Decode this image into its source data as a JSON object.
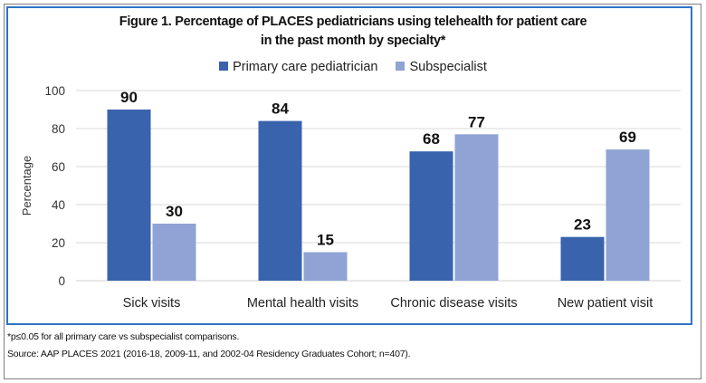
{
  "chart_data": {
    "type": "bar",
    "title": "Figure 1. Percentage of PLACES pediatricians using telehealth for patient care",
    "title_line2": "in the past month by specialty*",
    "xlabel": "",
    "ylabel": "Percentage",
    "ylim": [
      0,
      100
    ],
    "yticks": [
      "0",
      "20",
      "40",
      "60",
      "80",
      "100"
    ],
    "ytick_values": [
      0,
      20,
      40,
      60,
      80,
      100
    ],
    "grid": true,
    "legend_position": "top-center",
    "categories": [
      "Sick visits",
      "Mental health visits",
      "Chronic disease visits",
      "New patient visit"
    ],
    "series": [
      {
        "name": "Primary care pediatrician",
        "color": "#3a63ad",
        "values": [
          90,
          84,
          68,
          23
        ]
      },
      {
        "name": "Subspecialist",
        "color": "#8fa3d4",
        "values": [
          30,
          15,
          77,
          69
        ]
      }
    ]
  },
  "footnotes": {
    "significance": "*p≤0.05 for all primary care vs subspecialist comparisons.",
    "source": "Source: AAP PLACES 2021 (2016-18, 2009-11, and 2002-04 Residency Graduates Cohort; n=407)."
  },
  "colors": {
    "frame_border": "#2e75c5",
    "gridline": "#d9d9d9"
  }
}
